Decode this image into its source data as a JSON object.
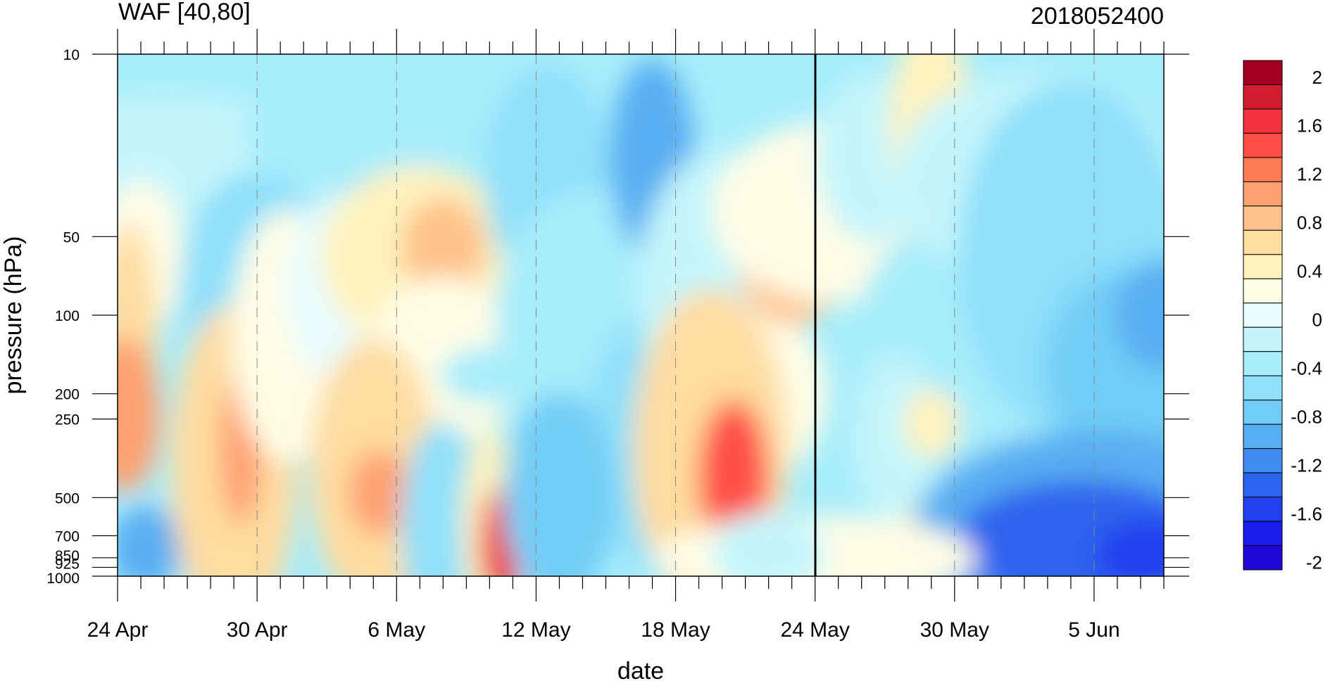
{
  "chart_data": {
    "type": "heatmap",
    "title": "WAF [40,80]",
    "subtitle": "2018052400",
    "xlabel": "date",
    "ylabel": "pressure (hPa)",
    "x_ticks": [
      "24 Apr",
      "30 Apr",
      "6 May",
      "12 May",
      "18 May",
      "24 May",
      "30 May",
      "5 Jun"
    ],
    "x_range": [
      "2018-04-24",
      "2018-06-08"
    ],
    "y_ticks": [
      10,
      50,
      100,
      200,
      250,
      500,
      700,
      850,
      925,
      1000
    ],
    "y_scale": "log",
    "y_range": [
      1000,
      10
    ],
    "marked_date": "2018-05-24",
    "colorbar": {
      "labels": [
        "2",
        "1.6",
        "1.2",
        "0.8",
        "0.4",
        "0",
        "-0.4",
        "-0.8",
        "-1.2",
        "-1.6",
        "-2"
      ],
      "colors": [
        "#a50021",
        "#d21d2e",
        "#f0323c",
        "#ff4f46",
        "#ff7a55",
        "#ffa070",
        "#ffc28a",
        "#ffdca0",
        "#fff2bd",
        "#fffde6",
        "#e8fcfe",
        "#c5f5fb",
        "#a7edfb",
        "#8fe0fa",
        "#72cdf6",
        "#58aef2",
        "#3e8cf0",
        "#2d64ee",
        "#2140ef",
        "#1a1cec",
        "#2208d6"
      ]
    },
    "grid": "dashed vertical lines at date ticks",
    "legend": "colorbar-right"
  }
}
